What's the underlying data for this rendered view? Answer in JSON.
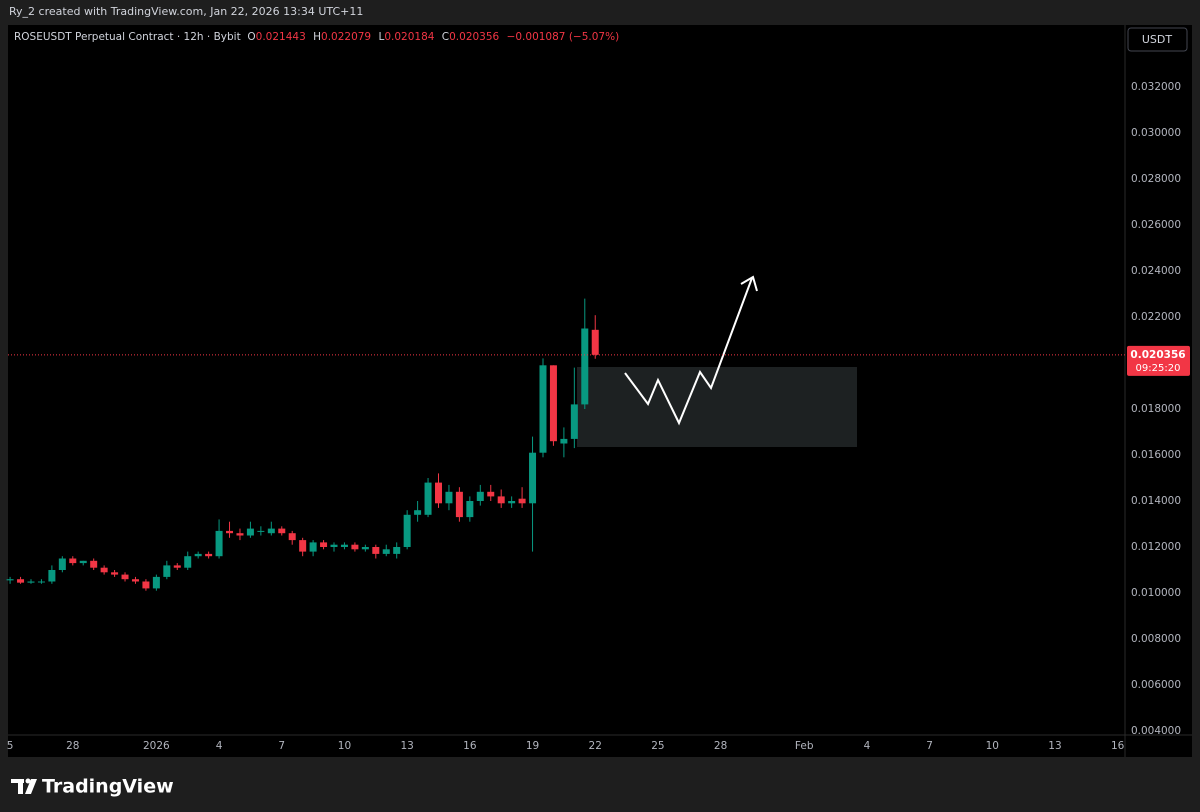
{
  "attribution": "Ry_2 created with TradingView.com, Jan 22, 2026 13:34 UTC+11",
  "brand": "TradingView",
  "currency": "USDT",
  "countdown": "09:25:20",
  "chart_data": {
    "type": "candlestick",
    "title": "ROSEUSDT Perpetual Contract · 12h · Bybit",
    "ohlc_labels": [
      "O",
      "H",
      "L",
      "C"
    ],
    "change": "−0.001087 (−5.07%)",
    "up_color": "#089981",
    "down_color": "#f23645",
    "grid": false,
    "x": [
      0,
      0.5,
      1,
      1.5,
      2,
      2.5,
      3,
      3.5,
      4,
      4.5,
      5,
      5.5,
      6,
      6.5,
      7,
      7.5,
      8,
      8.5,
      9,
      9.5,
      10,
      10.5,
      11,
      11.5,
      12,
      12.5,
      13,
      13.5,
      14,
      14.5,
      15,
      15.5,
      16,
      16.5,
      17,
      17.5,
      18,
      18.5,
      19,
      19.5,
      20,
      20.5,
      21,
      21.5,
      22,
      22.5,
      23,
      23.5,
      24,
      24.5,
      25,
      25.5,
      26,
      26.5,
      27,
      27.5,
      28
    ],
    "open": [
      0.01055,
      0.0106,
      0.01045,
      0.0105,
      0.0105,
      0.011,
      0.0115,
      0.0113,
      0.0114,
      0.0111,
      0.0109,
      0.0108,
      0.0106,
      0.0105,
      0.0102,
      0.0107,
      0.0112,
      0.0111,
      0.0116,
      0.0117,
      0.0116,
      0.0127,
      0.0126,
      0.0125,
      0.0127,
      0.0126,
      0.0128,
      0.0126,
      0.0123,
      0.0118,
      0.0122,
      0.012,
      0.012,
      0.0121,
      0.0119,
      0.012,
      0.0117,
      0.0117,
      0.012,
      0.0134,
      0.0134,
      0.0148,
      0.0139,
      0.0144,
      0.0133,
      0.014,
      0.0144,
      0.0142,
      0.0139,
      0.0141,
      0.0139,
      0.0161,
      0.0199,
      0.0165,
      0.0167,
      0.0182,
      0.021443
    ],
    "high": [
      0.0107,
      0.0107,
      0.0106,
      0.0106,
      0.0112,
      0.0116,
      0.0116,
      0.0114,
      0.0115,
      0.0112,
      0.011,
      0.0109,
      0.0107,
      0.0106,
      0.0108,
      0.0114,
      0.0113,
      0.0118,
      0.0118,
      0.0118,
      0.0132,
      0.0131,
      0.0128,
      0.0131,
      0.0129,
      0.0131,
      0.0129,
      0.0127,
      0.0124,
      0.0123,
      0.0123,
      0.0122,
      0.0122,
      0.0122,
      0.0121,
      0.0121,
      0.0121,
      0.0122,
      0.0136,
      0.014,
      0.015,
      0.0152,
      0.0147,
      0.0146,
      0.0142,
      0.0147,
      0.0147,
      0.0145,
      0.0142,
      0.0146,
      0.0168,
      0.0202,
      0.0199,
      0.0172,
      0.0198,
      0.0228,
      0.022079
    ],
    "low": [
      0.0104,
      0.0104,
      0.0104,
      0.0104,
      0.0104,
      0.0109,
      0.0112,
      0.0112,
      0.011,
      0.0108,
      0.0107,
      0.0105,
      0.0104,
      0.0101,
      0.0101,
      0.0106,
      0.011,
      0.011,
      0.0115,
      0.0115,
      0.0115,
      0.0124,
      0.0123,
      0.0124,
      0.0125,
      0.0125,
      0.0125,
      0.0121,
      0.0116,
      0.0116,
      0.0119,
      0.0118,
      0.0119,
      0.0118,
      0.0118,
      0.0115,
      0.0116,
      0.0115,
      0.0119,
      0.0131,
      0.0133,
      0.0137,
      0.0136,
      0.0131,
      0.0131,
      0.0138,
      0.014,
      0.0137,
      0.0137,
      0.0137,
      0.0118,
      0.0159,
      0.0164,
      0.0159,
      0.0163,
      0.018,
      0.020184
    ],
    "close": [
      0.0106,
      0.01045,
      0.0105,
      0.0105,
      0.011,
      0.0115,
      0.0113,
      0.0114,
      0.0111,
      0.0109,
      0.0108,
      0.0106,
      0.0105,
      0.0102,
      0.0107,
      0.0112,
      0.0111,
      0.0116,
      0.0117,
      0.0116,
      0.0127,
      0.0126,
      0.0125,
      0.0128,
      0.0127,
      0.0128,
      0.0126,
      0.0123,
      0.0118,
      0.0122,
      0.012,
      0.0121,
      0.0121,
      0.0119,
      0.012,
      0.0117,
      0.0119,
      0.012,
      0.0134,
      0.0136,
      0.0148,
      0.0139,
      0.0144,
      0.0133,
      0.014,
      0.0144,
      0.0142,
      0.0139,
      0.014,
      0.0139,
      0.0161,
      0.0199,
      0.0166,
      0.0167,
      0.0182,
      0.0215,
      0.020356
    ],
    "xlim": [
      -0.1,
      53.35
    ],
    "xticks": [
      {
        "value": 0,
        "label": "5"
      },
      {
        "value": 3,
        "label": "28"
      },
      {
        "value": 7,
        "label": "2026"
      },
      {
        "value": 10,
        "label": "4"
      },
      {
        "value": 13,
        "label": "7"
      },
      {
        "value": 16,
        "label": "10"
      },
      {
        "value": 19,
        "label": "13"
      },
      {
        "value": 22,
        "label": "16"
      },
      {
        "value": 25,
        "label": "19"
      },
      {
        "value": 28,
        "label": "22"
      },
      {
        "value": 31,
        "label": "25"
      },
      {
        "value": 34,
        "label": "28"
      },
      {
        "value": 38,
        "label": "Feb"
      },
      {
        "value": 41,
        "label": "4"
      },
      {
        "value": 44,
        "label": "7"
      },
      {
        "value": 47,
        "label": "10"
      },
      {
        "value": 50,
        "label": "13"
      },
      {
        "value": 53,
        "label": "16"
      }
    ],
    "ylim": [
      0.003826,
      0.034696
    ],
    "yticks": [
      {
        "value": 0.004,
        "label": "0.004000"
      },
      {
        "value": 0.006,
        "label": "0.006000"
      },
      {
        "value": 0.008,
        "label": "0.008000"
      },
      {
        "value": 0.01,
        "label": "0.010000"
      },
      {
        "value": 0.012,
        "label": "0.012000"
      },
      {
        "value": 0.014,
        "label": "0.014000"
      },
      {
        "value": 0.016,
        "label": "0.016000"
      },
      {
        "value": 0.018,
        "label": "0.018000"
      },
      {
        "value": 0.02,
        "label": "0.020000"
      },
      {
        "value": 0.022,
        "label": "0.022000"
      },
      {
        "value": 0.024,
        "label": "0.024000"
      },
      {
        "value": 0.026,
        "label": "0.026000"
      },
      {
        "value": 0.028,
        "label": "0.028000"
      },
      {
        "value": 0.03,
        "label": "0.030000"
      },
      {
        "value": 0.032,
        "label": "0.032000"
      }
    ]
  }
}
